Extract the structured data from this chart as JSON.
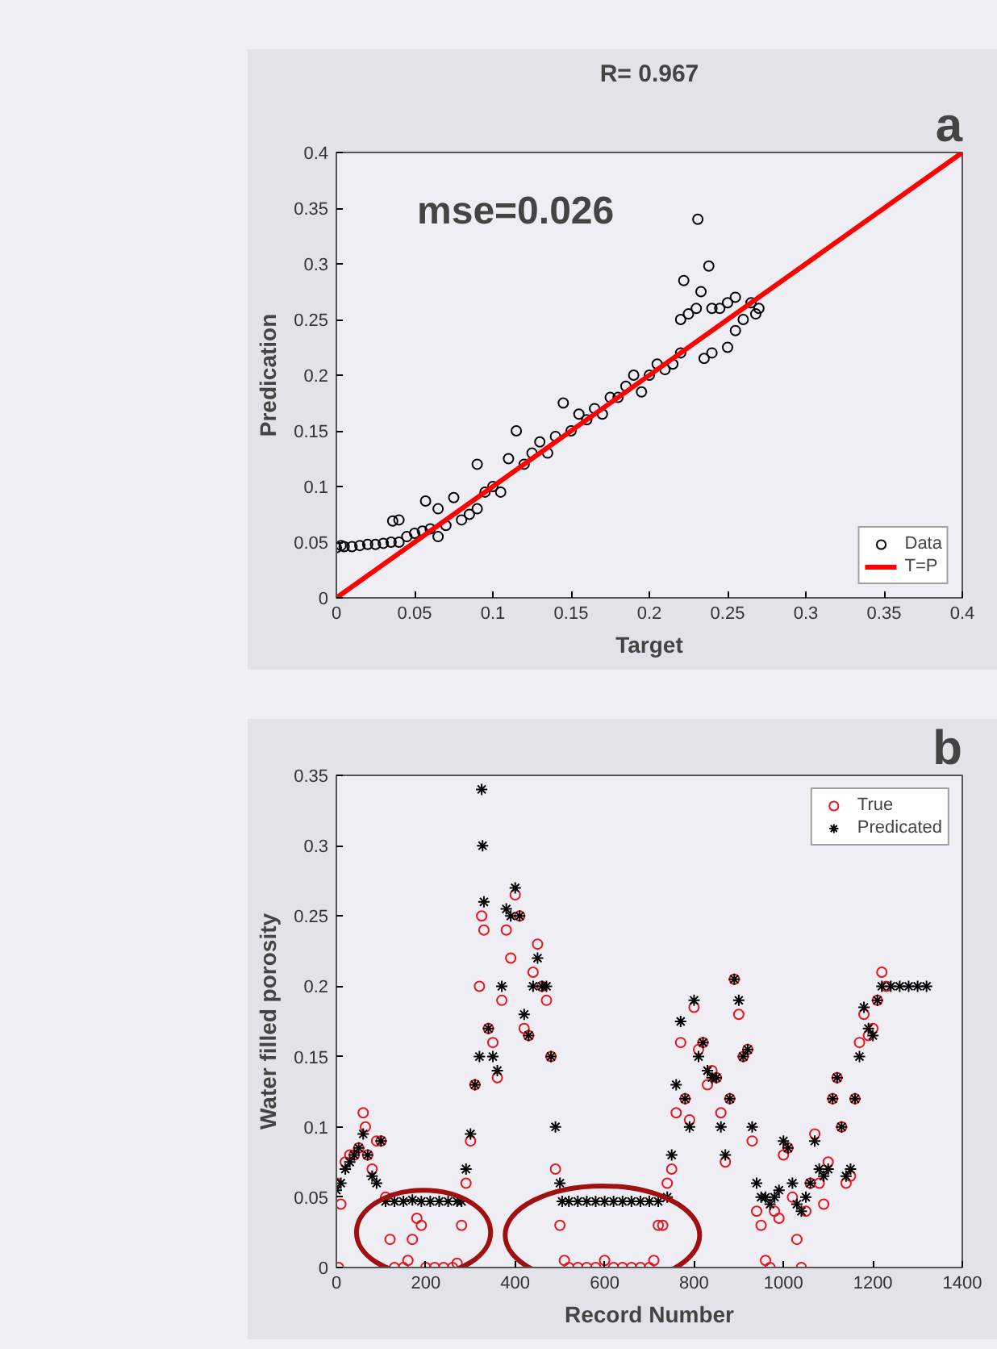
{
  "chart_data": [
    {
      "type": "scatter",
      "title": "R= 0.967",
      "xlabel": "Target",
      "ylabel": "Predication",
      "annotations": [
        "mse=0.026",
        "a"
      ],
      "xlim": [
        0,
        0.4
      ],
      "ylim": [
        0,
        0.4
      ],
      "xticks": [
        0,
        0.05,
        0.1,
        0.15,
        0.2,
        0.25,
        0.3,
        0.35,
        0.4
      ],
      "yticks": [
        0,
        0.05,
        0.1,
        0.15,
        0.2,
        0.25,
        0.3,
        0.35,
        0.4
      ],
      "grid": false,
      "legend": "bottom right",
      "series": [
        {
          "name": "Data",
          "marker": "circle",
          "color": "#000000",
          "x": [
            0,
            0.003,
            0.005,
            0.01,
            0.015,
            0.02,
            0.025,
            0.03,
            0.035,
            0.04,
            0.036,
            0.04,
            0.045,
            0.05,
            0.055,
            0.057,
            0.06,
            0.065,
            0.065,
            0.07,
            0.075,
            0.08,
            0.085,
            0.09,
            0.09,
            0.095,
            0.1,
            0.105,
            0.11,
            0.115,
            0.12,
            0.125,
            0.13,
            0.135,
            0.14,
            0.145,
            0.15,
            0.155,
            0.16,
            0.165,
            0.17,
            0.175,
            0.18,
            0.185,
            0.19,
            0.195,
            0.2,
            0.205,
            0.21,
            0.215,
            0.22,
            0.22,
            0.225,
            0.222,
            0.23,
            0.231,
            0.233,
            0.235,
            0.238,
            0.24,
            0.24,
            0.245,
            0.25,
            0.25,
            0.255,
            0.255,
            0.26,
            0.265,
            0.268,
            0.27
          ],
          "values": [
            0.045,
            0.047,
            0.046,
            0.046,
            0.047,
            0.048,
            0.048,
            0.049,
            0.05,
            0.05,
            0.069,
            0.07,
            0.055,
            0.058,
            0.06,
            0.087,
            0.062,
            0.055,
            0.08,
            0.065,
            0.09,
            0.07,
            0.075,
            0.08,
            0.12,
            0.095,
            0.1,
            0.095,
            0.125,
            0.15,
            0.12,
            0.13,
            0.14,
            0.13,
            0.145,
            0.175,
            0.15,
            0.165,
            0.16,
            0.17,
            0.165,
            0.18,
            0.18,
            0.19,
            0.2,
            0.185,
            0.2,
            0.21,
            0.205,
            0.21,
            0.22,
            0.25,
            0.255,
            0.285,
            0.26,
            0.34,
            0.275,
            0.215,
            0.298,
            0.26,
            0.22,
            0.26,
            0.265,
            0.225,
            0.27,
            0.24,
            0.25,
            0.265,
            0.255,
            0.26
          ]
        },
        {
          "name": "T=P",
          "type": "line",
          "marker": "none",
          "line_style": "solid",
          "color": "#ff0000",
          "x": [
            0,
            0.4
          ],
          "values": [
            0,
            0.4
          ]
        }
      ]
    },
    {
      "type": "scatter",
      "xlabel": "Record Number",
      "ylabel": "Water filled porosity",
      "annotations": [
        "b"
      ],
      "xlim": [
        0,
        1400
      ],
      "ylim": [
        0,
        0.35
      ],
      "xticks": [
        0,
        200,
        400,
        600,
        800,
        1000,
        1200,
        1400
      ],
      "yticks": [
        0,
        0.05,
        0.1,
        0.15,
        0.2,
        0.25,
        0.3,
        0.35
      ],
      "grid": false,
      "legend": "top right",
      "series": [
        {
          "name": "True",
          "marker": "circle",
          "color": "#e8141c",
          "x": [
            0,
            5,
            10,
            20,
            30,
            40,
            50,
            60,
            65,
            70,
            80,
            90,
            100,
            110,
            120,
            130,
            150,
            160,
            170,
            180,
            190,
            200,
            220,
            240,
            260,
            270,
            280,
            290,
            300,
            310,
            320,
            325,
            330,
            340,
            350,
            360,
            370,
            380,
            390,
            400,
            410,
            420,
            430,
            440,
            450,
            460,
            470,
            480,
            490,
            500,
            510,
            520,
            540,
            560,
            580,
            600,
            620,
            640,
            660,
            680,
            700,
            710,
            720,
            730,
            740,
            750,
            760,
            770,
            780,
            790,
            800,
            810,
            820,
            830,
            840,
            850,
            860,
            870,
            880,
            890,
            900,
            910,
            920,
            930,
            940,
            950,
            960,
            970,
            980,
            990,
            1000,
            1010,
            1020,
            1030,
            1040,
            1050,
            1060,
            1070,
            1080,
            1090,
            1100,
            1110,
            1120,
            1130,
            1140,
            1150,
            1160,
            1170,
            1180,
            1190,
            1200,
            1210,
            1220,
            1230
          ],
          "values": [
            0.06,
            0,
            0.045,
            0.075,
            0.08,
            0.08,
            0.085,
            0.11,
            0.1,
            0.08,
            0.07,
            0.09,
            0.09,
            0.05,
            0.02,
            0,
            0,
            0.005,
            0.02,
            0.035,
            0.03,
            0,
            0,
            0,
            0,
            0.003,
            0.03,
            0.06,
            0.09,
            0.13,
            0.2,
            0.25,
            0.24,
            0.17,
            0.16,
            0.135,
            0.19,
            0.24,
            0.22,
            0.265,
            0.25,
            0.17,
            0.165,
            0.21,
            0.23,
            0.2,
            0.19,
            0.15,
            0.07,
            0.03,
            0.005,
            0,
            0,
            0,
            0,
            0.005,
            0,
            0,
            0,
            0,
            0,
            0.005,
            0.03,
            0.03,
            0.06,
            0.07,
            0.11,
            0.16,
            0.12,
            0.105,
            0.185,
            0.155,
            0.16,
            0.13,
            0.14,
            0.135,
            0.11,
            0.075,
            0.12,
            0.205,
            0.18,
            0.15,
            0.155,
            0.09,
            0.04,
            0.03,
            0.005,
            0,
            0.04,
            0.035,
            0.08,
            0.085,
            0.05,
            0.02,
            0,
            0.04,
            0.06,
            0.095,
            0.06,
            0.045,
            0.075,
            0.12,
            0.135,
            0.1,
            0.06,
            0.065,
            0.12,
            0.16,
            0.18,
            0.165,
            0.17,
            0.19,
            0.21,
            0.2
          ]
        },
        {
          "name": "Predicated",
          "marker": "cross",
          "color": "#000000",
          "x": [
            0,
            10,
            20,
            30,
            40,
            50,
            60,
            70,
            80,
            90,
            100,
            110,
            130,
            150,
            170,
            190,
            210,
            230,
            250,
            270,
            280,
            290,
            300,
            310,
            320,
            325,
            327,
            330,
            340,
            350,
            360,
            370,
            380,
            390,
            400,
            410,
            420,
            430,
            440,
            450,
            460,
            470,
            480,
            490,
            500,
            505,
            520,
            540,
            560,
            580,
            600,
            620,
            640,
            660,
            680,
            700,
            720,
            740,
            750,
            760,
            770,
            780,
            790,
            800,
            810,
            820,
            830,
            840,
            850,
            860,
            870,
            880,
            890,
            900,
            910,
            920,
            930,
            940,
            950,
            960,
            970,
            980,
            990,
            1000,
            1010,
            1020,
            1030,
            1040,
            1050,
            1060,
            1070,
            1080,
            1090,
            1100,
            1110,
            1120,
            1130,
            1140,
            1150,
            1160,
            1170,
            1180,
            1190,
            1200,
            1210,
            1220,
            1240,
            1260,
            1280,
            1300,
            1320
          ],
          "values": [
            0.055,
            0.06,
            0.07,
            0.075,
            0.08,
            0.085,
            0.095,
            0.08,
            0.065,
            0.06,
            0.09,
            0.047,
            0.047,
            0.047,
            0.048,
            0.047,
            0.047,
            0.047,
            0.047,
            0.047,
            0.047,
            0.07,
            0.095,
            0.13,
            0.15,
            0.34,
            0.3,
            0.26,
            0.17,
            0.15,
            0.14,
            0.2,
            0.255,
            0.25,
            0.27,
            0.25,
            0.18,
            0.165,
            0.2,
            0.22,
            0.2,
            0.2,
            0.15,
            0.1,
            0.06,
            0.047,
            0.047,
            0.047,
            0.047,
            0.047,
            0.047,
            0.047,
            0.047,
            0.047,
            0.047,
            0.047,
            0.047,
            0.05,
            0.08,
            0.13,
            0.175,
            0.12,
            0.1,
            0.19,
            0.15,
            0.16,
            0.14,
            0.135,
            0.135,
            0.1,
            0.08,
            0.12,
            0.205,
            0.19,
            0.15,
            0.155,
            0.1,
            0.06,
            0.05,
            0.05,
            0.045,
            0.05,
            0.055,
            0.09,
            0.085,
            0.06,
            0.045,
            0.04,
            0.05,
            0.06,
            0.09,
            0.07,
            0.065,
            0.07,
            0.12,
            0.135,
            0.1,
            0.065,
            0.07,
            0.12,
            0.15,
            0.185,
            0.17,
            0.165,
            0.19,
            0.2,
            0.2,
            0.2,
            0.2,
            0.2,
            0.2
          ]
        }
      ]
    }
  ]
}
